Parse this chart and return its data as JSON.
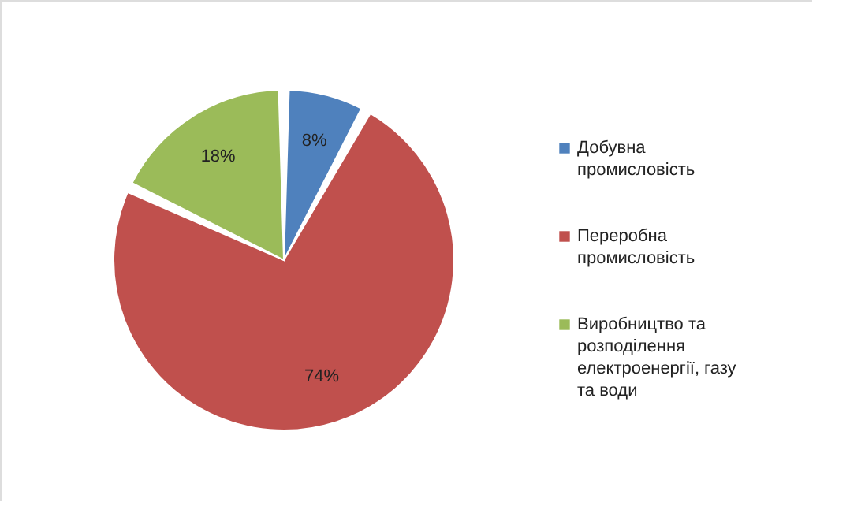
{
  "chart_data": {
    "type": "pie",
    "categories": [
      "Добувна промисловість",
      "Переробна промисловість",
      "Виробництво та розподілення електроенергії, газу та води"
    ],
    "values": [
      8,
      74,
      18
    ],
    "colors": [
      "#4f81bd",
      "#c0504d",
      "#9bbb59"
    ],
    "value_labels": [
      "8%",
      "74%",
      "18%"
    ],
    "legend": "right"
  }
}
